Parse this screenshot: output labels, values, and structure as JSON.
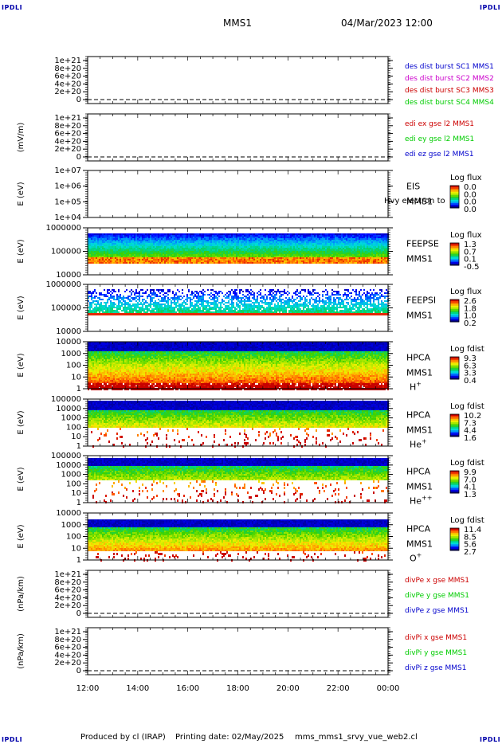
{
  "corners": {
    "tl": "IPDLI",
    "tr": "IPDLI",
    "bl": "IPDLI",
    "br": "IPDLI"
  },
  "header": {
    "title": "MMS1",
    "datetime": "04/Mar/2023 12:00"
  },
  "footer": {
    "produced": "Produced by cl (IRAP)",
    "printing": "Printing date: 02/May/2025",
    "file": "mms_mms1_srvy_vue_web2.cl"
  },
  "x_axis": {
    "ticks": [
      "12:00",
      "14:00",
      "16:00",
      "18:00",
      "20:00",
      "22:00",
      "00:00"
    ]
  },
  "colors": {
    "red": "#cc0000",
    "green": "#00cc00",
    "blue": "#0000cc",
    "magenta": "#cc00cc"
  },
  "chart_data": [
    {
      "type": "line",
      "ylabel": "",
      "yticks": [
        "1e+21",
        "8e+20",
        "6e+20",
        "4e+20",
        "2e+20",
        "0"
      ],
      "ylim": [
        0,
        1e+21
      ],
      "series": [
        {
          "name": "des dist burst SC1 MMS1",
          "color": "#0000cc"
        },
        {
          "name": "des dist burst SC2 MMS2",
          "color": "#cc00cc"
        },
        {
          "name": "des dist burst SC3 MMS3",
          "color": "#cc0000"
        },
        {
          "name": "des dist burst SC4 MMS4",
          "color": "#00cc00"
        }
      ]
    },
    {
      "type": "line",
      "ylabel": "(mV/m)",
      "yticks": [
        "1e+21",
        "8e+20",
        "6e+20",
        "4e+20",
        "2e+20",
        "0"
      ],
      "ylim": [
        0,
        1e+21
      ],
      "series": [
        {
          "name": "edi ex gse l2 MMS1",
          "color": "#cc0000"
        },
        {
          "name": "edi ey gse l2 MMS1",
          "color": "#00cc00"
        },
        {
          "name": "edi ez gse l2 MMS1",
          "color": "#0000cc"
        }
      ]
    },
    {
      "type": "heatmap",
      "ylabel": "E (eV)",
      "yticks": [
        "1e+07",
        "1e+06",
        "1e+05",
        "1e+04"
      ],
      "labels": [
        "EIS",
        "MMS1"
      ],
      "overlay": "Hvy electron to",
      "colorbar": {
        "title": "Log flux",
        "ticks": [
          "0.0",
          "0.0",
          "0.0",
          "0.0"
        ]
      }
    },
    {
      "type": "heatmap",
      "ylabel": "E (eV)",
      "yticks": [
        "1000000",
        "100000",
        "10000"
      ],
      "labels": [
        "FEEPSE",
        "MMS1"
      ],
      "colorbar": {
        "title": "Log flux",
        "ticks": [
          "1.3",
          "0.7",
          "0.1",
          "-0.5"
        ]
      }
    },
    {
      "type": "heatmap",
      "ylabel": "E (eV)",
      "yticks": [
        "1000000",
        "100000",
        "10000"
      ],
      "labels": [
        "FEEPSI",
        "MMS1"
      ],
      "colorbar": {
        "title": "Log flux",
        "ticks": [
          "2.6",
          "1.8",
          "1.0",
          "0.2"
        ]
      }
    },
    {
      "type": "heatmap",
      "ylabel": "E (eV)",
      "yticks": [
        "10000",
        "1000",
        "100",
        "10",
        "1"
      ],
      "labels": [
        "HPCA",
        "MMS1"
      ],
      "species": "H",
      "species_sup": "+",
      "colorbar": {
        "title": "Log fdist",
        "ticks": [
          "9.3",
          "6.3",
          "3.3",
          "0.4"
        ]
      }
    },
    {
      "type": "heatmap",
      "ylabel": "E (eV)",
      "yticks": [
        "100000",
        "10000",
        "1000",
        "100",
        "10",
        "1"
      ],
      "labels": [
        "HPCA",
        "MMS1"
      ],
      "species": "He",
      "species_sup": "+",
      "colorbar": {
        "title": "Log fdist",
        "ticks": [
          "10.2",
          "7.3",
          "4.4",
          "1.6"
        ]
      }
    },
    {
      "type": "heatmap",
      "ylabel": "E (eV)",
      "yticks": [
        "100000",
        "10000",
        "1000",
        "100",
        "10",
        "1"
      ],
      "labels": [
        "HPCA",
        "MMS1"
      ],
      "species": "He",
      "species_sup": "++",
      "colorbar": {
        "title": "Log fdist",
        "ticks": [
          "9.9",
          "7.0",
          "4.1",
          "1.3"
        ]
      }
    },
    {
      "type": "heatmap",
      "ylabel": "E (eV)",
      "yticks": [
        "10000",
        "1000",
        "100",
        "10",
        "1"
      ],
      "labels": [
        "HPCA",
        "MMS1"
      ],
      "species": "O",
      "species_sup": "+",
      "colorbar": {
        "title": "Log fdist",
        "ticks": [
          "11.4",
          "8.5",
          "5.6",
          "2.7"
        ]
      }
    },
    {
      "type": "line",
      "ylabel": "(nPa/km)",
      "yticks": [
        "1e+21",
        "8e+20",
        "6e+20",
        "4e+20",
        "2e+20",
        "0"
      ],
      "ylim": [
        0,
        1e+21
      ],
      "series": [
        {
          "name": "divPe x gse MMS1",
          "color": "#cc0000"
        },
        {
          "name": "divPe y gse MMS1",
          "color": "#00cc00"
        },
        {
          "name": "divPe z gse MMS1",
          "color": "#0000cc"
        }
      ]
    },
    {
      "type": "line",
      "ylabel": "(nPa/km)",
      "yticks": [
        "1e+21",
        "8e+20",
        "6e+20",
        "4e+20",
        "2e+20",
        "0"
      ],
      "ylim": [
        0,
        1e+21
      ],
      "series": [
        {
          "name": "divPi x gse MMS1",
          "color": "#cc0000"
        },
        {
          "name": "divPi y gse MMS1",
          "color": "#00cc00"
        },
        {
          "name": "divPi z gse MMS1",
          "color": "#0000cc"
        }
      ]
    }
  ]
}
